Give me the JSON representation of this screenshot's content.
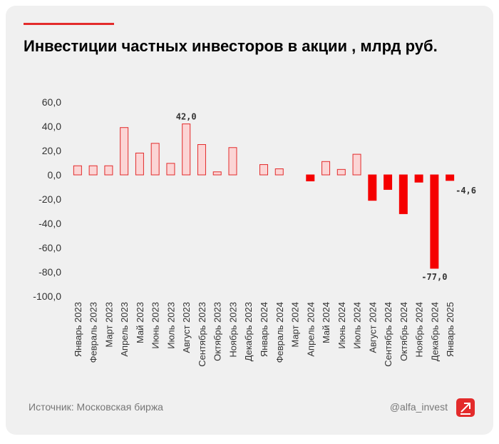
{
  "chart_data": {
    "type": "bar",
    "title": "Инвестиции частных инвесторов в акции , млрд руб.",
    "source": "Источник: Московская биржа",
    "handle": "@alfa_invest",
    "categories": [
      "Январь 2023",
      "Февраль 2023",
      "Март 2023",
      "Апрель 2023",
      "Май 2023",
      "Июнь 2023",
      "Июль 2023",
      "Август 2023",
      "Сентябрь 2023",
      "Октябрь 2023",
      "Ноябрь 2023",
      "Декабрь 2023",
      "Январь 2024",
      "Февраль 2024",
      "Март 2024",
      "Апрель 2024",
      "Май 2024",
      "Июнь 2024",
      "Июль 2024",
      "Август 2024",
      "Сентябрь 2024",
      "Октябрь 2024",
      "Ноябрь 2024",
      "Декабрь 2024",
      "Январь 2025"
    ],
    "values": [
      7.5,
      7.5,
      7.5,
      39,
      18,
      26,
      9.5,
      42,
      25,
      2.5,
      22.5,
      0,
      8.5,
      5,
      0,
      -5,
      11,
      4.5,
      17,
      -21,
      -12,
      -32,
      -6,
      -77,
      -4.6
    ],
    "value_labels": [
      null,
      null,
      null,
      null,
      null,
      null,
      null,
      "42,0",
      null,
      null,
      null,
      null,
      null,
      null,
      null,
      null,
      null,
      null,
      null,
      null,
      null,
      null,
      null,
      "-77,0",
      "-4,6"
    ],
    "positive_color": "#fbd5d5",
    "positive_stroke": "#e32b2b",
    "negative_color": "#f50000",
    "ylim": [
      -100,
      60
    ],
    "yticks": [
      {
        "value": 60,
        "label": "60,0"
      },
      {
        "value": 40,
        "label": "40,0"
      },
      {
        "value": 20,
        "label": "20,0"
      },
      {
        "value": 0,
        "label": "0,0"
      },
      {
        "value": -20,
        "label": "-20,0"
      },
      {
        "value": -40,
        "label": "-40,0"
      },
      {
        "value": -60,
        "label": "-60,0"
      },
      {
        "value": -80,
        "label": "-80,0"
      },
      {
        "value": -100,
        "label": "-100,0"
      }
    ]
  }
}
